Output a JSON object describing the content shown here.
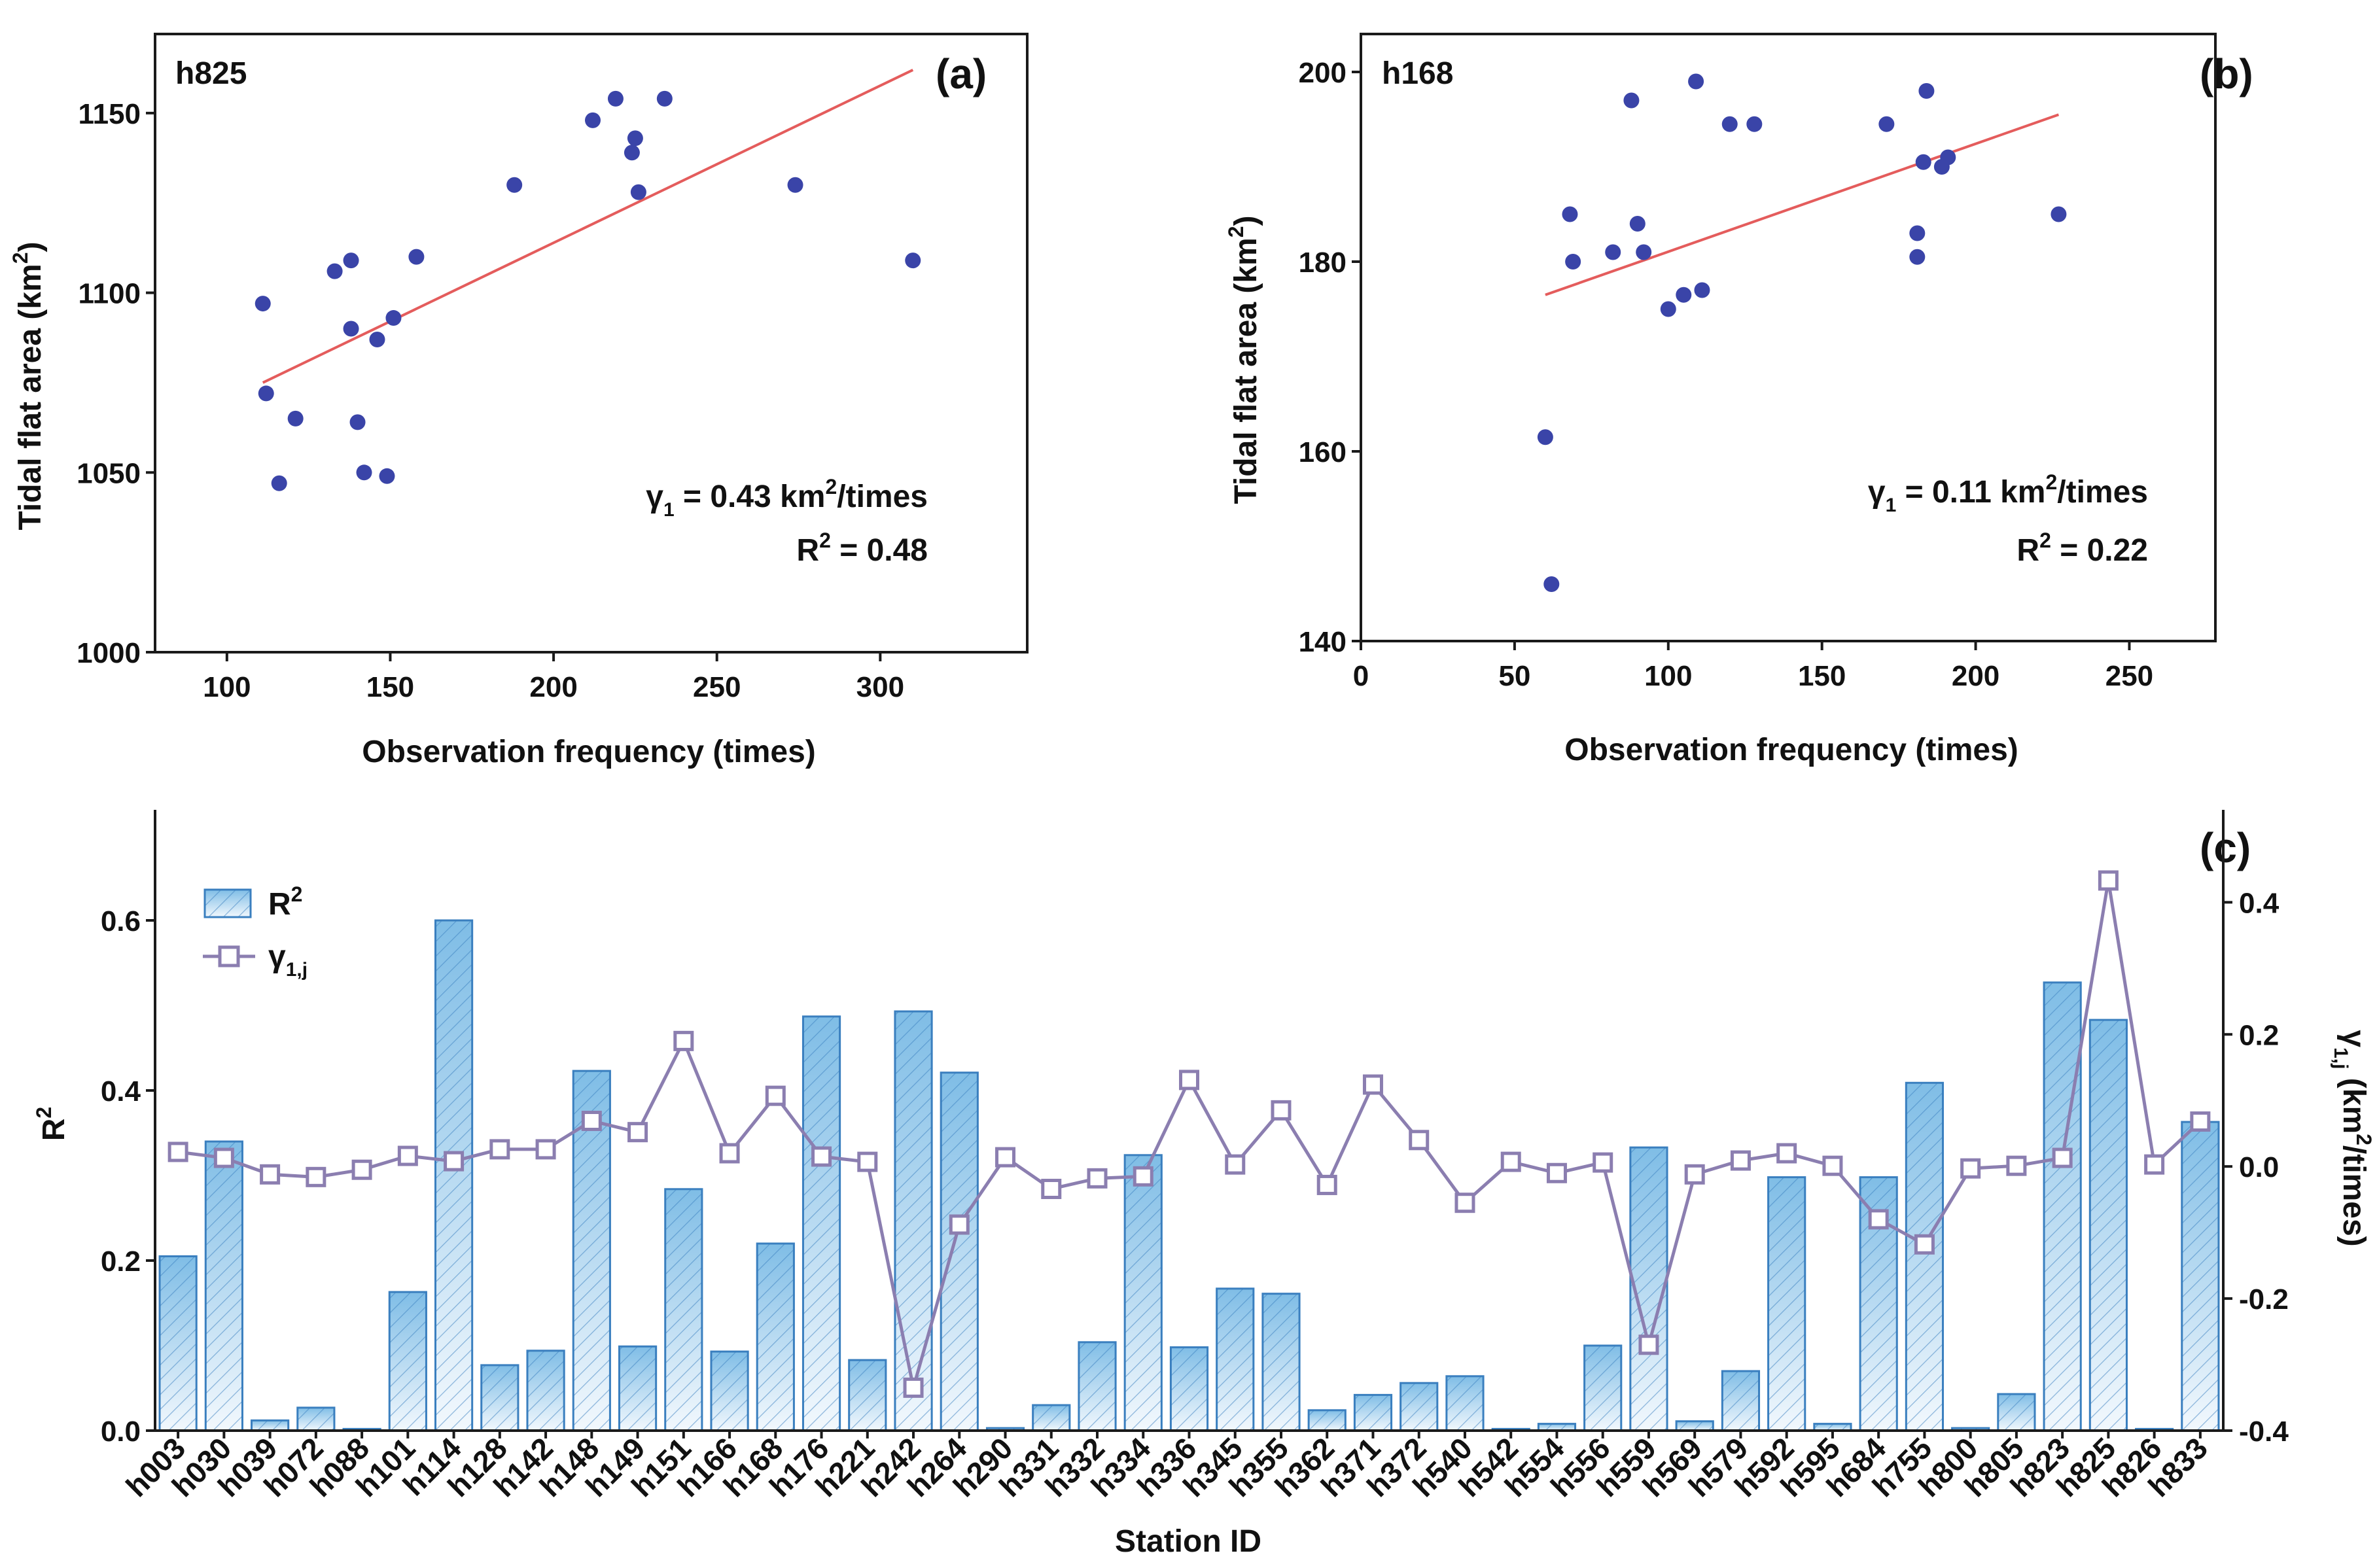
{
  "chart_data": [
    {
      "type": "scatter",
      "panel_label": "(a)",
      "station": "h825",
      "xlabel": "Observation frequency (times)",
      "ylabel_main": "Tidal flat area (km",
      "ylabel_sup": "2",
      "ylabel_end": ")",
      "xlim": [
        78,
        345
      ],
      "ylim": [
        1000,
        1172
      ],
      "xticks": [
        100,
        150,
        200,
        250,
        300
      ],
      "yticks": [
        1000,
        1050,
        1100,
        1150
      ],
      "points": [
        [
          111,
          1097
        ],
        [
          112,
          1072
        ],
        [
          116,
          1047
        ],
        [
          121,
          1065
        ],
        [
          133,
          1106
        ],
        [
          138,
          1109
        ],
        [
          138,
          1090
        ],
        [
          140,
          1064
        ],
        [
          142,
          1050
        ],
        [
          146,
          1087
        ],
        [
          149,
          1049
        ],
        [
          151,
          1093
        ],
        [
          158,
          1110
        ],
        [
          188,
          1130
        ],
        [
          212,
          1148
        ],
        [
          219,
          1154
        ],
        [
          224,
          1139
        ],
        [
          225,
          1143
        ],
        [
          226,
          1128
        ],
        [
          234,
          1154
        ],
        [
          274,
          1130
        ],
        [
          310,
          1109
        ]
      ],
      "fit_line": [
        [
          111,
          1075
        ],
        [
          310,
          1162
        ]
      ],
      "gamma_main": "γ",
      "gamma_sub": "1",
      "gamma_value": " = 0.43 km",
      "gamma_sup": "2",
      "gamma_unit": "/times",
      "r2_main": "R",
      "r2_sup": "2",
      "r2_value": " = 0.48"
    },
    {
      "type": "scatter",
      "panel_label": "(b)",
      "station": "h168",
      "xlabel": "Observation frequency (times)",
      "ylabel_main": "Tidal flat area (km",
      "ylabel_sup": "2",
      "ylabel_end": ")",
      "xlim": [
        0,
        278
      ],
      "ylim": [
        140,
        204
      ],
      "xticks": [
        0,
        50,
        100,
        150,
        200,
        250
      ],
      "yticks": [
        140,
        160,
        180,
        200
      ],
      "points": [
        [
          60,
          161.5
        ],
        [
          62,
          146
        ],
        [
          68,
          185
        ],
        [
          69,
          180
        ],
        [
          82,
          181
        ],
        [
          88,
          197
        ],
        [
          90,
          184
        ],
        [
          92,
          181
        ],
        [
          100,
          175
        ],
        [
          105,
          176.5
        ],
        [
          109,
          199
        ],
        [
          111,
          177
        ],
        [
          120,
          194.5
        ],
        [
          128,
          194.5
        ],
        [
          171,
          194.5
        ],
        [
          181,
          183
        ],
        [
          181,
          180.5
        ],
        [
          183,
          190.5
        ],
        [
          184,
          198
        ],
        [
          189,
          190
        ],
        [
          191,
          191
        ]
      ],
      "fit_line": [
        [
          60,
          176.5
        ],
        [
          227,
          195.5
        ]
      ],
      "extra_points": [
        [
          227,
          185
        ]
      ],
      "gamma_main": "γ",
      "gamma_sub": "1",
      "gamma_value": " = 0.11 km",
      "gamma_sup": "2",
      "gamma_unit": "/times",
      "r2_main": "R",
      "r2_sup": "2",
      "r2_value": " = 0.22"
    },
    {
      "type": "bar",
      "panel_label": "(c)",
      "xlabel": "Station ID",
      "ylabel_left": "R",
      "ylabel_left_sup": "2",
      "ylabel_right_main": "γ",
      "ylabel_right_sub": "1,j",
      "ylabel_right_unit": " (km",
      "ylabel_right_sup": "2",
      "ylabel_right_end": "/times)",
      "ylim_left": [
        0,
        0.73
      ],
      "ylim_right": [
        -0.4,
        0.54
      ],
      "yticks_left": [
        0.0,
        0.2,
        0.4,
        0.6
      ],
      "yticks_right": [
        -0.4,
        -0.2,
        0.0,
        0.2,
        0.4
      ],
      "legend": {
        "r2_main": "R",
        "r2_sup": "2",
        "gamma_main": "γ",
        "gamma_sub": "1,j"
      },
      "categories": [
        "h003",
        "h030",
        "h039",
        "h072",
        "h088",
        "h101",
        "h114",
        "h128",
        "h142",
        "h148",
        "h149",
        "h151",
        "h166",
        "h168",
        "h176",
        "h221",
        "h242",
        "h264",
        "h290",
        "h331",
        "h332",
        "h334",
        "h336",
        "h345",
        "h355",
        "h362",
        "h371",
        "h372",
        "h540",
        "h542",
        "h554",
        "h556",
        "h559",
        "h569",
        "h579",
        "h592",
        "h595",
        "h684",
        "h755",
        "h800",
        "h805",
        "h823",
        "h825",
        "h826",
        "h833"
      ],
      "series": [
        {
          "name": "R2",
          "values": [
            0.205,
            0.34,
            0.012,
            0.027,
            0.002,
            0.163,
            0.6,
            0.077,
            0.094,
            0.423,
            0.099,
            0.284,
            0.093,
            0.22,
            0.487,
            0.083,
            0.493,
            0.421,
            0.003,
            0.03,
            0.104,
            0.324,
            0.098,
            0.167,
            0.161,
            0.024,
            0.042,
            0.056,
            0.064,
            0.002,
            0.008,
            0.1,
            0.333,
            0.011,
            0.07,
            0.298,
            0.008,
            0.298,
            0.409,
            0.003,
            0.043,
            0.527,
            0.483,
            0.002,
            0.363
          ]
        },
        {
          "name": "gamma_1j",
          "values": [
            0.022,
            0.013,
            -0.012,
            -0.016,
            -0.005,
            0.016,
            0.008,
            0.026,
            0.026,
            0.069,
            0.052,
            0.19,
            0.02,
            0.107,
            0.015,
            0.007,
            -0.335,
            -0.088,
            0.014,
            -0.034,
            -0.018,
            -0.015,
            0.131,
            0.003,
            0.085,
            -0.028,
            0.124,
            0.04,
            -0.055,
            0.007,
            -0.01,
            0.006,
            -0.27,
            -0.012,
            0.009,
            0.02,
            0.001,
            -0.08,
            -0.118,
            -0.003,
            0.001,
            0.013,
            0.433,
            0.003,
            0.068
          ]
        }
      ]
    }
  ]
}
